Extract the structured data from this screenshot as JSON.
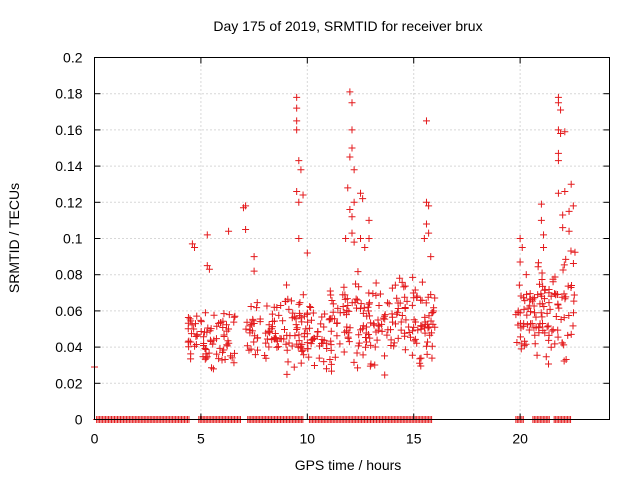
{
  "chart_data": {
    "type": "scatter",
    "title": "Day 175 of 2019, SRMTID for receiver brux",
    "xlabel": "GPS time / hours",
    "ylabel": "SRMTID / TECUs",
    "xlim": [
      0,
      24.2
    ],
    "ylim": [
      0,
      0.2
    ],
    "xticks": [
      0,
      5,
      10,
      15,
      20
    ],
    "xtick_labels": [
      "0",
      "5",
      "10",
      "15",
      "20"
    ],
    "yticks": [
      0,
      0.02,
      0.04,
      0.06,
      0.08,
      0.1,
      0.12,
      0.14,
      0.16,
      0.18,
      0.2
    ],
    "ytick_labels": [
      "0",
      "0.02",
      "0.04",
      "0.06",
      "0.08",
      "0.1",
      "0.12",
      "0.14",
      "0.16",
      "0.18",
      "0.2"
    ],
    "grid": true,
    "legend": "none",
    "marker": "+",
    "marker_color": "#e41a1c",
    "series": [
      {
        "name": "SRMTID",
        "clusters": [
          {
            "x_range": [
              4.3,
              6.6
            ],
            "y_range": [
              0.02,
              0.07
            ],
            "count": 80
          },
          {
            "x_range": [
              7.1,
              8.6
            ],
            "y_range": [
              0.025,
              0.075
            ],
            "count": 50
          },
          {
            "x_range": [
              8.6,
              11.0
            ],
            "y_range": [
              0.015,
              0.08
            ],
            "count": 90
          },
          {
            "x_range": [
              11.0,
              13.5
            ],
            "y_range": [
              0.015,
              0.09
            ],
            "count": 100
          },
          {
            "x_range": [
              13.5,
              16.0
            ],
            "y_range": [
              0.02,
              0.09
            ],
            "count": 100
          },
          {
            "x_range": [
              19.8,
              20.8
            ],
            "y_range": [
              0.03,
              0.09
            ],
            "count": 45
          },
          {
            "x_range": [
              20.8,
              22.6
            ],
            "y_range": [
              0.02,
              0.1
            ],
            "count": 80
          }
        ],
        "points": [
          [
            0.0,
            0.029
          ],
          [
            4.6,
            0.097
          ],
          [
            4.7,
            0.095
          ],
          [
            5.3,
            0.102
          ],
          [
            5.3,
            0.085
          ],
          [
            5.4,
            0.083
          ],
          [
            6.3,
            0.104
          ],
          [
            7.0,
            0.117
          ],
          [
            7.1,
            0.105
          ],
          [
            7.1,
            0.118
          ],
          [
            7.5,
            0.09
          ],
          [
            7.5,
            0.082
          ],
          [
            9.5,
            0.178
          ],
          [
            9.5,
            0.172
          ],
          [
            9.5,
            0.165
          ],
          [
            9.5,
            0.16
          ],
          [
            9.6,
            0.143
          ],
          [
            9.7,
            0.138
          ],
          [
            9.5,
            0.126
          ],
          [
            9.6,
            0.12
          ],
          [
            9.8,
            0.124
          ],
          [
            9.6,
            0.1
          ],
          [
            10.0,
            0.092
          ],
          [
            12.0,
            0.181
          ],
          [
            12.1,
            0.175
          ],
          [
            12.1,
            0.16
          ],
          [
            12.1,
            0.15
          ],
          [
            12.0,
            0.145
          ],
          [
            12.2,
            0.138
          ],
          [
            11.9,
            0.128
          ],
          [
            12.2,
            0.12
          ],
          [
            12.0,
            0.116
          ],
          [
            12.1,
            0.112
          ],
          [
            12.1,
            0.103
          ],
          [
            11.8,
            0.1
          ],
          [
            12.2,
            0.098
          ],
          [
            12.5,
            0.125
          ],
          [
            12.6,
            0.122
          ],
          [
            12.5,
            0.1
          ],
          [
            12.9,
            0.11
          ],
          [
            12.9,
            0.1
          ],
          [
            12.7,
            0.095
          ],
          [
            15.6,
            0.165
          ],
          [
            15.6,
            0.12
          ],
          [
            15.7,
            0.118
          ],
          [
            15.6,
            0.108
          ],
          [
            15.7,
            0.103
          ],
          [
            15.5,
            0.1
          ],
          [
            15.8,
            0.09
          ],
          [
            20.0,
            0.1
          ],
          [
            20.1,
            0.095
          ],
          [
            20.0,
            0.087
          ],
          [
            21.0,
            0.119
          ],
          [
            21.0,
            0.11
          ],
          [
            21.1,
            0.102
          ],
          [
            21.1,
            0.095
          ],
          [
            21.8,
            0.178
          ],
          [
            21.8,
            0.175
          ],
          [
            21.9,
            0.171
          ],
          [
            21.8,
            0.16
          ],
          [
            21.9,
            0.158
          ],
          [
            22.1,
            0.159
          ],
          [
            21.8,
            0.147
          ],
          [
            21.8,
            0.143
          ],
          [
            21.8,
            0.125
          ],
          [
            22.1,
            0.126
          ],
          [
            22.0,
            0.113
          ],
          [
            22.0,
            0.106
          ],
          [
            22.3,
            0.115
          ],
          [
            22.4,
            0.13
          ],
          [
            22.5,
            0.118
          ],
          [
            22.3,
            0.104
          ]
        ],
        "zero_segments": [
          [
            0.1,
            4.5
          ],
          [
            4.9,
            6.9
          ],
          [
            7.2,
            9.8
          ],
          [
            10.1,
            15.9
          ],
          [
            19.8,
            20.2
          ],
          [
            20.6,
            21.4
          ],
          [
            21.6,
            22.4
          ]
        ]
      }
    ]
  }
}
